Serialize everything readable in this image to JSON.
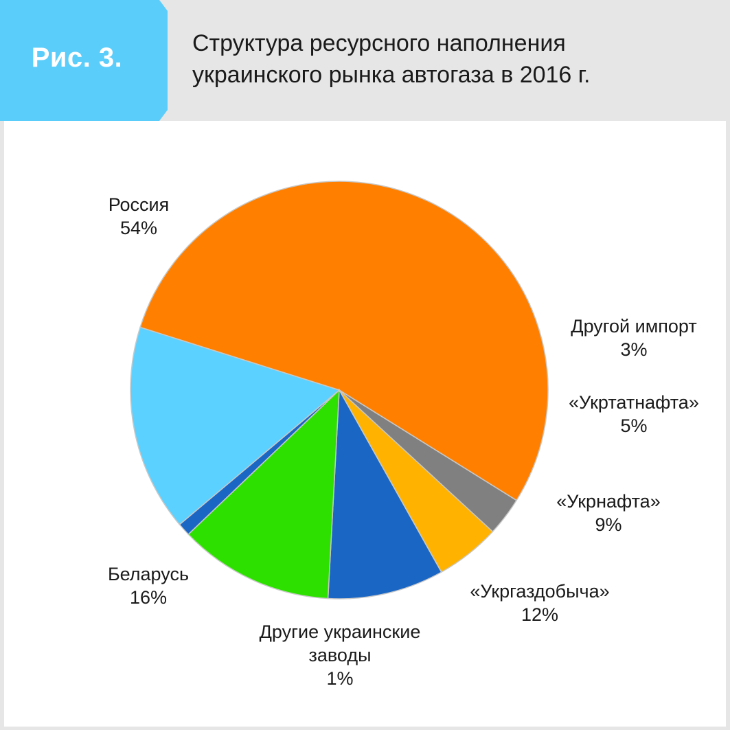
{
  "figure": {
    "tag": "Рис. 3.",
    "title_line1": "Структура ресурсного наполнения",
    "title_line2": "украинского рынка автогаза в 2016 г.",
    "tag_color": "#5bcdfa"
  },
  "chart_data": {
    "type": "pie",
    "title": "Структура ресурсного наполнения украинского рынка автогаза в 2016 г.",
    "slices": [
      {
        "label": [
          "Россия"
        ],
        "value_label": "54%",
        "value": 54,
        "color": "#ff8000"
      },
      {
        "label": [
          "Другой импорт"
        ],
        "value_label": "3%",
        "value": 3,
        "color": "#808080"
      },
      {
        "label": [
          "«Укртатнафта»"
        ],
        "value_label": "5%",
        "value": 5,
        "color": "#ffb300"
      },
      {
        "label": [
          "«Укрнафта»"
        ],
        "value_label": "9%",
        "value": 9,
        "color": "#1a66c4"
      },
      {
        "label": [
          "«Укргаздобыча»"
        ],
        "value_label": "12%",
        "value": 12,
        "color": "#2ee000"
      },
      {
        "label": [
          "Другие украинские",
          "заводы"
        ],
        "value_label": "1%",
        "value": 1,
        "color": "#1a66c4"
      },
      {
        "label": [
          "Беларусь"
        ],
        "value_label": "16%",
        "value": 16,
        "color": "#5bd1ff"
      }
    ]
  }
}
